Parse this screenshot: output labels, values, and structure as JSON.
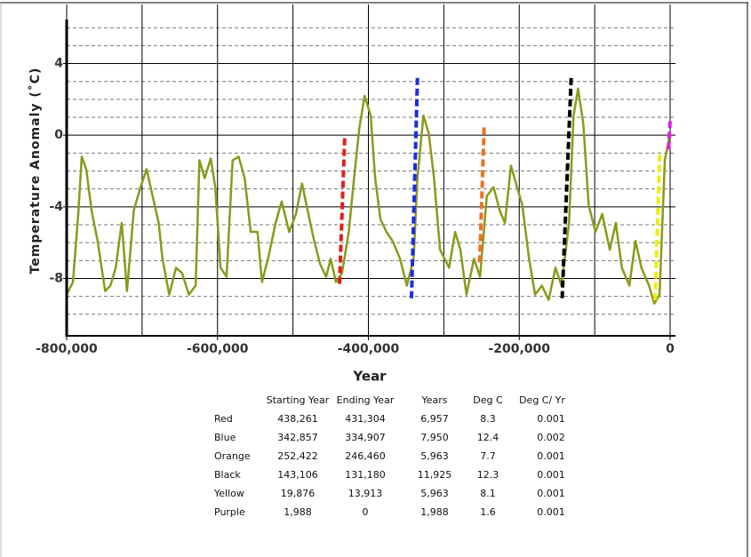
{
  "chart_data": {
    "type": "line",
    "xlabel": "Year",
    "ylabel": "Temperature Anomaly (˚C)",
    "xlim": [
      -800000,
      0
    ],
    "ylim": [
      -11.2,
      7.3
    ],
    "xticks": [
      {
        "value": -800000,
        "label": "-800,000"
      },
      {
        "value": -600000,
        "label": "-600,000"
      },
      {
        "value": -400000,
        "label": "-400,000"
      },
      {
        "value": -200000,
        "label": "-200,000"
      },
      0
    ],
    "x_minor_ticks": [
      -700000,
      -500000,
      -300000,
      -100000
    ],
    "yticks": [
      4,
      0,
      -4,
      -8
    ],
    "y_minor_ticks": [
      6,
      5,
      3,
      2,
      1,
      -1,
      -2,
      -3,
      -5,
      -6,
      -7,
      -9,
      -10
    ],
    "grid": true,
    "series": [
      {
        "color": "#8a9a1c",
        "x": [
          -800000,
          -791700,
          -784600,
          -780000,
          -774000,
          -767000,
          -759000,
          -749000,
          -742000,
          -735000,
          -727000,
          -720000,
          -711000,
          -702000,
          -694000,
          -686000,
          -678000,
          -673000,
          -664000,
          -655000,
          -647000,
          -638000,
          -629000,
          -624000,
          -617000,
          -609000,
          -603000,
          -596000,
          -588000,
          -580000,
          -572000,
          -564000,
          -556000,
          -547000,
          -541000,
          -532000,
          -523000,
          -515000,
          -505000,
          -496000,
          -488000,
          -482000,
          -473000,
          -464000,
          -456000,
          -450000,
          -443000,
          -435000,
          -426000,
          -419000,
          -412000,
          -405000,
          -397000,
          -391000,
          -384000,
          -376000,
          -368000,
          -358000,
          -349000,
          -340000,
          -335000,
          -327000,
          -320000,
          -313000,
          -305000,
          -293000,
          -285000,
          -278000,
          -270000,
          -260000,
          -252000,
          -243000,
          -234000,
          -226000,
          -219000,
          -211000,
          -203000,
          -196000,
          -187000,
          -179000,
          -170000,
          -161000,
          -152000,
          -144000,
          -134000,
          -128000,
          -122000,
          -115000,
          -108000,
          -99000,
          -90000,
          -80000,
          -72000,
          -64000,
          -54000,
          -46000,
          -38000,
          -28000,
          -21000,
          -14000,
          -7000,
          0
        ],
        "values": [
          -8.9,
          -8.2,
          -4.4,
          -1.2,
          -1.9,
          -4.2,
          -5.9,
          -8.7,
          -8.4,
          -7.4,
          -4.9,
          -8.7,
          -4.2,
          -2.9,
          -1.9,
          -3.4,
          -4.9,
          -6.9,
          -8.9,
          -7.4,
          -7.7,
          -8.9,
          -8.4,
          -1.4,
          -2.4,
          -1.3,
          -2.9,
          -7.4,
          -7.9,
          -1.4,
          -1.2,
          -2.4,
          -5.4,
          -5.4,
          -8.2,
          -6.7,
          -4.9,
          -3.7,
          -5.4,
          -4.4,
          -2.7,
          -3.9,
          -5.7,
          -7.2,
          -7.9,
          -6.9,
          -8.2,
          -7.7,
          -5.4,
          -2.4,
          0.4,
          2.2,
          1.1,
          -2.4,
          -4.7,
          -5.4,
          -5.9,
          -6.9,
          -8.4,
          -6.9,
          -2.4,
          1.1,
          0.1,
          -2.4,
          -6.4,
          -7.4,
          -5.4,
          -6.4,
          -8.9,
          -6.9,
          -7.9,
          -3.4,
          -2.9,
          -4.2,
          -4.9,
          -1.7,
          -2.9,
          -3.9,
          -6.9,
          -8.9,
          -8.4,
          -9.2,
          -7.4,
          -8.4,
          -4.9,
          1.1,
          2.6,
          0.6,
          -3.9,
          -5.4,
          -4.4,
          -6.4,
          -4.9,
          -7.4,
          -8.4,
          -5.9,
          -7.4,
          -8.4,
          -9.4,
          -8.9,
          -1.4,
          0.1
        ]
      },
      {
        "color": "#e0201c",
        "style": "dashed",
        "x": [
          -438261,
          -431304
        ],
        "values": [
          -8.3,
          0
        ]
      },
      {
        "color": "#1a2ee0",
        "style": "dashed",
        "x": [
          -342857,
          -334907
        ],
        "values": [
          -9.1,
          3.3
        ]
      },
      {
        "color": "#f07020",
        "style": "dashed",
        "x": [
          -252422,
          -246460
        ],
        "values": [
          -7.1,
          0.6
        ]
      },
      {
        "color": "#000000",
        "style": "dashed",
        "x": [
          -143106,
          -131180
        ],
        "values": [
          -9.1,
          3.2
        ]
      },
      {
        "color": "#f0ec10",
        "style": "dashed",
        "x": [
          -19876,
          -13913
        ],
        "values": [
          -9.2,
          -1.1
        ]
      },
      {
        "color": "#e020e0",
        "style": "dashed",
        "x": [
          -1988,
          0
        ],
        "values": [
          -0.8,
          0.8
        ]
      }
    ]
  },
  "table": {
    "header": [
      "Starting Year",
      "Ending Year",
      "Years",
      "Deg C",
      "Deg C/ Yr"
    ],
    "rows": [
      [
        "Red",
        "438,261",
        "431,304",
        "6,957",
        "8.3",
        "0.001"
      ],
      [
        "Blue",
        "342,857",
        "334,907",
        "7,950",
        "12.4",
        "0.002"
      ],
      [
        "Orange",
        "252,422",
        "246,460",
        "5,963",
        "7.7",
        "0.001"
      ],
      [
        "Black",
        "143,106",
        "131,180",
        "11,925",
        "12.3",
        "0.001"
      ],
      [
        "Yellow",
        "19,876",
        "13,913",
        "5,963",
        "8.1",
        "0.001"
      ],
      [
        "Purple",
        "1,988",
        "0",
        "1,988",
        "1.6",
        "0.001"
      ]
    ]
  }
}
